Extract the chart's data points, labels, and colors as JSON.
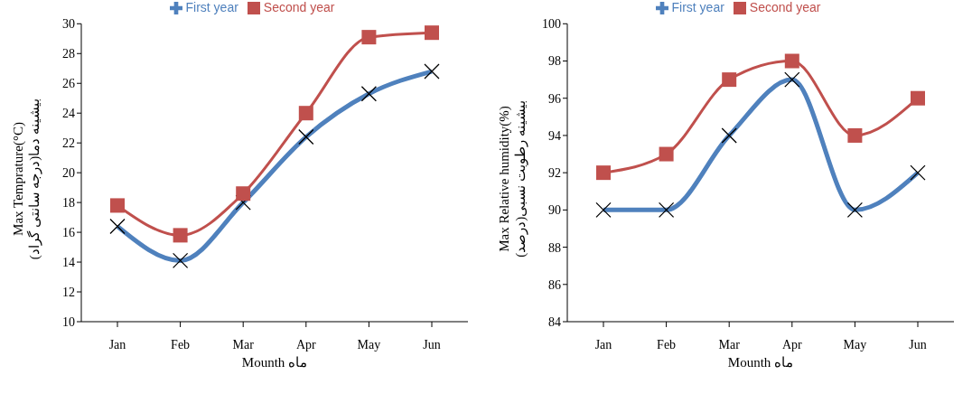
{
  "chart_data": [
    {
      "type": "line",
      "categories": [
        "Jan",
        "Feb",
        "Mar",
        "Apr",
        "May",
        "Jun"
      ],
      "series": [
        {
          "name": "First year",
          "color": "#4f81bd",
          "marker": "cross",
          "values": [
            16.4,
            14.1,
            18.0,
            22.4,
            25.3,
            26.8
          ]
        },
        {
          "name": "Second year",
          "color": "#c0504d",
          "marker": "square",
          "values": [
            17.8,
            15.8,
            18.6,
            24.0,
            29.1,
            29.4
          ]
        }
      ],
      "ylabel": "Max Temprature(°C)\nبیشینه دما(درجه سانتی گراد)",
      "xlabel": "Mounth    ماه",
      "ylim": [
        10,
        30
      ],
      "yticks": [
        10,
        12,
        14,
        16,
        18,
        20,
        22,
        24,
        26,
        28,
        30
      ],
      "legend": "top",
      "grid": false
    },
    {
      "type": "line",
      "categories": [
        "Jan",
        "Feb",
        "Mar",
        "Apr",
        "May",
        "Jun"
      ],
      "series": [
        {
          "name": "First year",
          "color": "#4f81bd",
          "marker": "cross",
          "values": [
            90,
            90,
            94,
            97,
            90,
            92
          ]
        },
        {
          "name": "Second year",
          "color": "#c0504d",
          "marker": "square",
          "values": [
            92,
            93,
            97,
            98,
            94,
            96
          ]
        }
      ],
      "ylabel": "Max Relative humidity(%)\nبیشینه رطوبت نسبی(درصد)",
      "xlabel": "Mounth    ماه",
      "ylim": [
        84,
        100
      ],
      "yticks": [
        84,
        86,
        88,
        90,
        92,
        94,
        96,
        98,
        100
      ],
      "legend": "top",
      "grid": false
    }
  ]
}
